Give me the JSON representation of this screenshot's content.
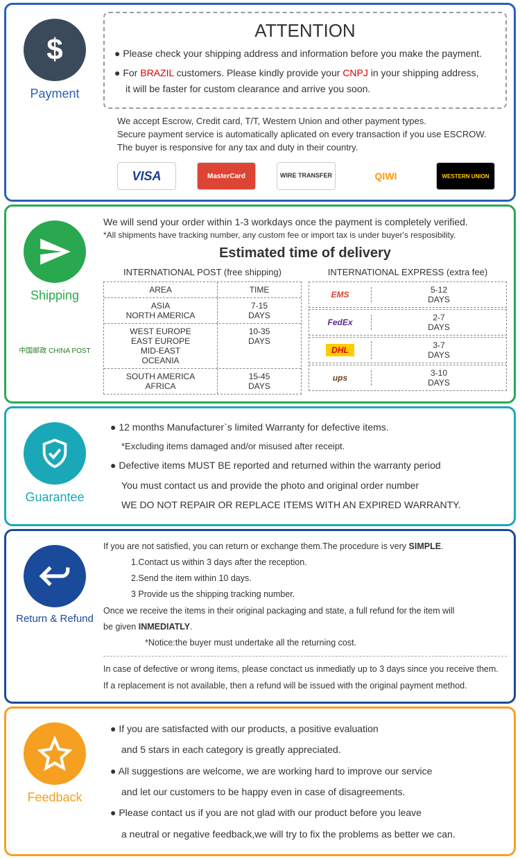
{
  "payment": {
    "border": "#2a5fb8",
    "icon_bg": "#3a4a5a",
    "label": "Payment",
    "label_color": "#2a5fb8",
    "attention_title": "ATTENTION",
    "bullet1": "● Please check your shipping address and information before you make the payment.",
    "bullet2_a": "● For ",
    "bullet2_b": "BRAZIL",
    "bullet2_c": " customers. Please kindly provide your ",
    "bullet2_d": "CNPJ",
    "bullet2_e": " in your shipping address,",
    "bullet2_f": "it will be faster for custom clearance and arrive you soon.",
    "line1": "We accept Escrow, Credit card, T/T, Western Union and other payment types.",
    "line2": "Secure payment service is automatically aplicated on every transaction if you use ESCROW.",
    "line3": "The buyer is responsive for any tax and duty in their country.",
    "logos": {
      "visa": "VISA",
      "mc": "MasterCard",
      "wire": "WIRE TRANSFER",
      "qiwi": "QIWI",
      "wu": "WESTERN UNION"
    }
  },
  "shipping": {
    "border": "#2aa850",
    "icon_bg": "#2aa850",
    "label": "Shipping",
    "label_color": "#2aa850",
    "line1": "We will send your order within 1-3 workdays once the payment is completely verified.",
    "line2": "*All shipments have tracking number, any custom fee or import tax is under buyer's resposibility.",
    "est_title": "Estimated time of delivery",
    "post_head": "INTERNATIONAL POST (free shipping)",
    "express_head": "INTERNATIONAL EXPRESS (extra fee)",
    "chinapost": "中国邮政 CHINA POST",
    "post_header_area": "AREA",
    "post_header_time": "TIME",
    "post_rows": [
      {
        "area": "ASIA\nNORTH AMERICA",
        "time": "7-15\nDAYS"
      },
      {
        "area": "WEST EUROPE\nEAST EUROPE\nMID-EAST\nOCEANIA",
        "time": "10-35\nDAYS"
      },
      {
        "area": "SOUTH AMERICA\nAFRICA",
        "time": "15-45\nDAYS"
      }
    ],
    "exp_rows": [
      {
        "logo": "EMS",
        "logo_color": "#d43",
        "time": "5-12\nDAYS"
      },
      {
        "logo": "FedEx",
        "logo_color": "#5a2d8a",
        "time": "2-7\nDAYS"
      },
      {
        "logo": "DHL",
        "logo_color": "#d00",
        "logo_bg": "#ffcc00",
        "time": "3-7\nDAYS"
      },
      {
        "logo": "ups",
        "logo_color": "#6b4423",
        "time": "3-10\nDAYS"
      }
    ]
  },
  "guarantee": {
    "border": "#1aa8b8",
    "icon_bg": "#1aa8b8",
    "label": "Guarantee",
    "label_color": "#1aa8b8",
    "b1": "● 12 months Manufacturer`s limited Warranty for defective items.",
    "b1s": "*Excluding items damaged and/or misused after receipt.",
    "b2": "●  Defective items MUST BE reported and returned within the warranty period",
    "b3": "You must contact us and provide the photo and original order number",
    "b4": "WE DO NOT REPAIR OR REPLACE ITEMS WITH AN EXPIRED WARRANTY."
  },
  "return": {
    "border": "#1a4a9a",
    "icon_bg": "#1a4a9a",
    "label": "Return & Refund",
    "label_color": "#1a4a9a",
    "l1a": "If you are not satisfied, you can return or exchange them.The procedure is very ",
    "l1b": "SIMPLE",
    "s1": "1.Contact us within 3 days after the reception.",
    "s2": "2.Send the item within 10 days.",
    "s3": "3 Provide us the shipping tracking number.",
    "l2a": "Once we receive the items in their original packaging and state, a full refund for the item will",
    "l2b": "be given ",
    "l2c": "INMEDIATLY",
    "l3": "*Notice:the buyer must undertake all the returning cost.",
    "l4": "In case of defective or wrong items, please conctact us inmediatly up to 3 days since you receive them.",
    "l5": "If a replacement is not available, then a refund will be issued with the original payment method."
  },
  "feedback": {
    "border": "#f5a020",
    "icon_bg": "#f5a020",
    "label": "Feedback",
    "label_color": "#f5a020",
    "b1": "● If you are satisfacted with our products, a positive evaluation",
    "b1b": "and 5 stars in each category is greatly appreciated.",
    "b2": "●  All suggestions are welcome, we are working hard to improve our service",
    "b2b": "and let our customers to be happy even in case of disagreements.",
    "b3": "● Please contact us if you are not glad with our product before you leave",
    "b3b": "a neutral or negative feedback,we will try to fix the problems as better we can."
  }
}
